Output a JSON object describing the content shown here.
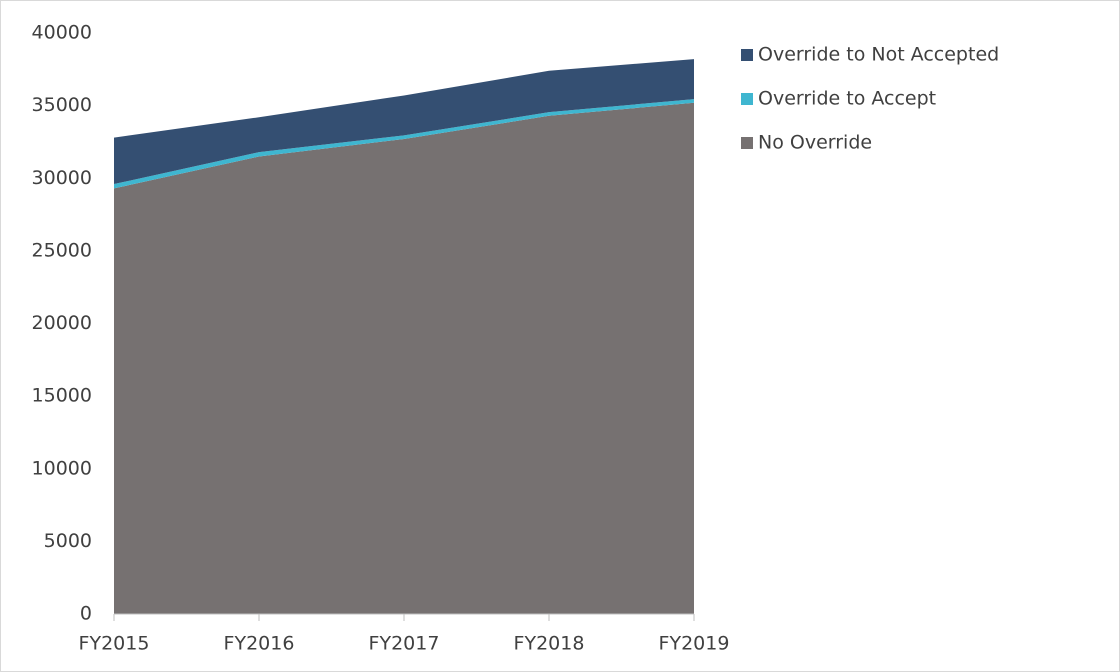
{
  "chart_data": {
    "type": "stacked_area",
    "categories": [
      "FY2015",
      "FY2016",
      "FY2017",
      "FY2018",
      "FY2019"
    ],
    "series": [
      {
        "name": "No Override",
        "color": "#767171",
        "values": [
          29300,
          31500,
          32700,
          34300,
          35200
        ]
      },
      {
        "name": "Override to Accept",
        "color": "#3fb6d0",
        "values": [
          300,
          300,
          250,
          250,
          250
        ]
      },
      {
        "name": "Override to Not Accepted",
        "color": "#344f72",
        "values": [
          3200,
          2400,
          2750,
          2850,
          2750
        ]
      }
    ],
    "ylim": [
      0,
      40000
    ],
    "yticks": [
      0,
      5000,
      10000,
      15000,
      20000,
      25000,
      30000,
      35000,
      40000
    ],
    "legend": "right"
  }
}
